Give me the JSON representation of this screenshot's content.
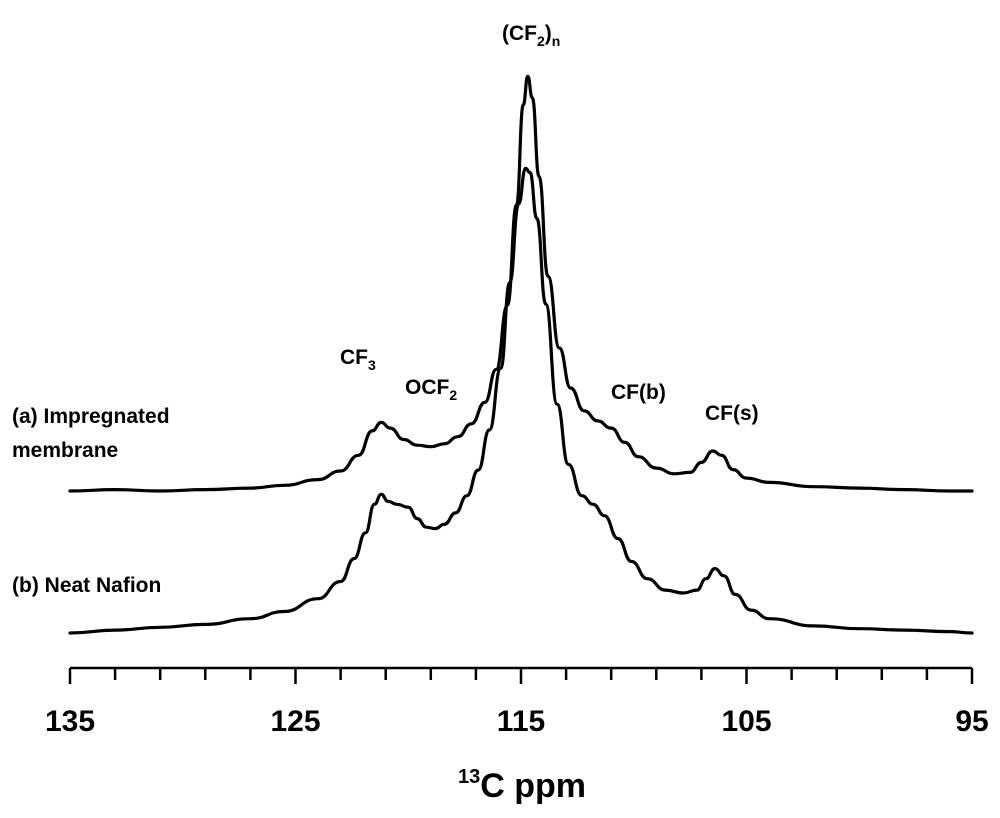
{
  "chart_data": {
    "type": "line",
    "title": "",
    "xlabel_sup": "13",
    "xlabel_main": "C ppm",
    "xlim": [
      135,
      95
    ],
    "x_reversed": true,
    "x_ticks": [
      "135",
      "125",
      "115",
      "105",
      "95"
    ],
    "x_tick_values": [
      135,
      125,
      115,
      105,
      95
    ],
    "x_minor_step": 2,
    "ylabel": "",
    "series": [
      {
        "name": "(a) Impregnated membrane",
        "label_line1": "(a) Impregnated",
        "label_line2": "membrane",
        "offset": 1.0,
        "points": [
          [
            135,
            0.0
          ],
          [
            133,
            0.01
          ],
          [
            131,
            0.0
          ],
          [
            129,
            0.01
          ],
          [
            127,
            0.02
          ],
          [
            125.5,
            0.04
          ],
          [
            124,
            0.08
          ],
          [
            123,
            0.14
          ],
          [
            122.2,
            0.25
          ],
          [
            121.6,
            0.42
          ],
          [
            121.2,
            0.48
          ],
          [
            120.8,
            0.44
          ],
          [
            120.2,
            0.36
          ],
          [
            119.6,
            0.32
          ],
          [
            119.0,
            0.31
          ],
          [
            118.4,
            0.33
          ],
          [
            117.8,
            0.38
          ],
          [
            117.2,
            0.47
          ],
          [
            116.6,
            0.62
          ],
          [
            116.1,
            0.85
          ],
          [
            115.6,
            1.3
          ],
          [
            115.2,
            2.0
          ],
          [
            114.9,
            2.7
          ],
          [
            114.7,
            2.9
          ],
          [
            114.5,
            2.75
          ],
          [
            114.2,
            2.2
          ],
          [
            113.8,
            1.5
          ],
          [
            113.3,
            1.0
          ],
          [
            112.8,
            0.72
          ],
          [
            112.2,
            0.56
          ],
          [
            111.6,
            0.49
          ],
          [
            111.0,
            0.44
          ],
          [
            110.4,
            0.34
          ],
          [
            109.8,
            0.24
          ],
          [
            109.0,
            0.16
          ],
          [
            108.2,
            0.12
          ],
          [
            107.5,
            0.13
          ],
          [
            107.0,
            0.2
          ],
          [
            106.5,
            0.28
          ],
          [
            106.1,
            0.25
          ],
          [
            105.6,
            0.15
          ],
          [
            105.0,
            0.09
          ],
          [
            104,
            0.06
          ],
          [
            102,
            0.03
          ],
          [
            100,
            0.02
          ],
          [
            98,
            0.01
          ],
          [
            96,
            0.0
          ],
          [
            95,
            0.0
          ]
        ]
      },
      {
        "name": "(b) Neat Nafion",
        "label_line1": "(b) Neat Nafion",
        "label_line2": "",
        "offset": 0.0,
        "points": [
          [
            135,
            0.0
          ],
          [
            133,
            0.02
          ],
          [
            131,
            0.04
          ],
          [
            129,
            0.06
          ],
          [
            127,
            0.1
          ],
          [
            125.5,
            0.15
          ],
          [
            124,
            0.24
          ],
          [
            123,
            0.36
          ],
          [
            122.4,
            0.52
          ],
          [
            121.9,
            0.7
          ],
          [
            121.5,
            0.9
          ],
          [
            121.2,
            0.97
          ],
          [
            120.9,
            0.92
          ],
          [
            120.5,
            0.9
          ],
          [
            120.0,
            0.88
          ],
          [
            119.6,
            0.8
          ],
          [
            119.2,
            0.74
          ],
          [
            118.8,
            0.73
          ],
          [
            118.4,
            0.76
          ],
          [
            117.9,
            0.84
          ],
          [
            117.4,
            0.96
          ],
          [
            116.9,
            1.14
          ],
          [
            116.4,
            1.42
          ],
          [
            115.9,
            1.85
          ],
          [
            115.5,
            2.45
          ],
          [
            115.1,
            3.0
          ],
          [
            114.8,
            3.25
          ],
          [
            114.6,
            3.22
          ],
          [
            114.3,
            2.9
          ],
          [
            113.9,
            2.3
          ],
          [
            113.4,
            1.6
          ],
          [
            112.9,
            1.18
          ],
          [
            112.3,
            0.96
          ],
          [
            111.8,
            0.9
          ],
          [
            111.3,
            0.82
          ],
          [
            110.7,
            0.66
          ],
          [
            110.1,
            0.5
          ],
          [
            109.4,
            0.38
          ],
          [
            108.6,
            0.3
          ],
          [
            107.8,
            0.28
          ],
          [
            107.2,
            0.3
          ],
          [
            106.8,
            0.38
          ],
          [
            106.4,
            0.45
          ],
          [
            106.0,
            0.4
          ],
          [
            105.5,
            0.27
          ],
          [
            104.8,
            0.16
          ],
          [
            104,
            0.1
          ],
          [
            102,
            0.05
          ],
          [
            100,
            0.03
          ],
          [
            98,
            0.02
          ],
          [
            96,
            0.01
          ],
          [
            95,
            0.0
          ]
        ]
      }
    ],
    "annotations": [
      {
        "id": "cf2n",
        "base": "(CF",
        "sub": "2",
        "tail": ")",
        "sub2": "n",
        "x": 114.7
      },
      {
        "id": "cf3",
        "base": "CF",
        "sub": "3",
        "tail": "",
        "sub2": "",
        "x": 121.5
      },
      {
        "id": "ocf2",
        "base": "OCF",
        "sub": "2",
        "tail": "",
        "sub2": "",
        "x": 118.8
      },
      {
        "id": "cfb",
        "base": "CF(b)",
        "sub": "",
        "tail": "",
        "sub2": "",
        "x": 110.8
      },
      {
        "id": "cfs",
        "base": "CF(s)",
        "sub": "",
        "tail": "",
        "sub2": "",
        "x": 106.3
      }
    ]
  }
}
